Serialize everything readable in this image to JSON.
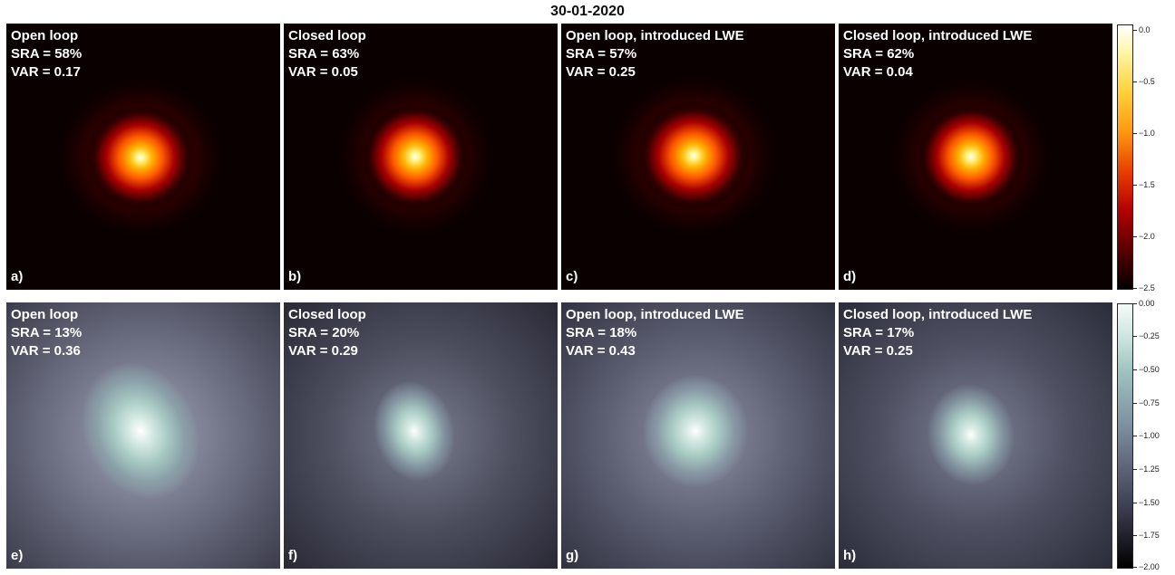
{
  "figure_title": "30-01-2020",
  "rows": [
    {
      "colormap": "hot",
      "panels": [
        {
          "heading": "Open loop",
          "sra": "SRA = 58%",
          "var": "VAR = 0.17",
          "label": "a)"
        },
        {
          "heading": "Closed loop",
          "sra": "SRA = 63%",
          "var": "VAR = 0.05",
          "label": "b)"
        },
        {
          "heading": "Open loop, introduced LWE",
          "sra": "SRA = 57%",
          "var": "VAR = 0.25",
          "label": "c)"
        },
        {
          "heading": "Closed loop, introduced LWE",
          "sra": "SRA = 62%",
          "var": "VAR = 0.04",
          "label": "d)"
        }
      ],
      "colorbar_ticks": [
        "0.0",
        "−0.5",
        "−1.0",
        "−1.5",
        "−2.0",
        "−2.5"
      ]
    },
    {
      "colormap": "bone",
      "panels": [
        {
          "heading": "Open loop",
          "sra": "SRA = 13%",
          "var": "VAR = 0.36",
          "label": "e)"
        },
        {
          "heading": "Closed loop",
          "sra": "SRA = 20%",
          "var": "VAR = 0.29",
          "label": "f)"
        },
        {
          "heading": "Open loop, introduced LWE",
          "sra": "SRA = 18%",
          "var": "VAR = 0.43",
          "label": "g)"
        },
        {
          "heading": "Closed loop, introduced LWE",
          "sra": "SRA = 17%",
          "var": "VAR = 0.25",
          "label": "h)"
        }
      ],
      "colorbar_ticks": [
        "0.00",
        "−0.25",
        "−0.50",
        "−0.75",
        "−1.00",
        "−1.25",
        "−1.50",
        "−1.75",
        "−2.00"
      ]
    }
  ]
}
